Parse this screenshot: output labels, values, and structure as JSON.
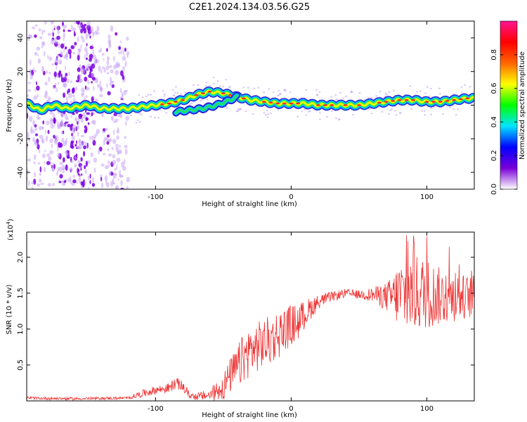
{
  "title": "C2E1.2024.134.03.56.G25",
  "chart_data": [
    {
      "type": "heatmap",
      "xlabel": "Height of straight line (km)",
      "ylabel": "Frequency (Hz)",
      "xlim": [
        -195,
        135
      ],
      "ylim": [
        -50,
        50
      ],
      "xticks": [
        -100,
        0,
        100
      ],
      "yticks": [
        -40,
        -20,
        0,
        20,
        40
      ],
      "xtick_labels": [
        "-100",
        "0",
        "100"
      ],
      "ytick_labels": [
        "-40",
        "-20",
        "0",
        "20",
        "40"
      ],
      "colorbar": {
        "label": "Normalized spectral amplitude",
        "range": [
          0,
          1
        ],
        "ticks": [
          0.0,
          0.2,
          0.4,
          0.6,
          0.8
        ],
        "tick_labels": [
          "0.0",
          "0.2",
          "0.4",
          "0.6",
          "0.8"
        ],
        "colors": [
          "#ffffff",
          "#7a00d9",
          "#0000ff",
          "#00e5ff",
          "#00ff00",
          "#ffff00",
          "#ff6600",
          "#ff0000",
          "#ff1493"
        ]
      },
      "ridge": {
        "x": [
          -195,
          -185,
          -175,
          -165,
          -150,
          -140,
          -130,
          -120,
          -110,
          -100,
          -90,
          -80,
          -70,
          -60,
          -50,
          -40,
          -30,
          -20,
          -10,
          0,
          10,
          20,
          30,
          40,
          50,
          60,
          70,
          80,
          90,
          100,
          110,
          120,
          130,
          135
        ],
        "y": [
          1,
          -3,
          0,
          -2,
          0,
          -2,
          -2,
          -2,
          -1,
          0,
          1,
          3,
          6,
          8,
          7,
          5,
          3,
          2,
          1,
          1,
          1,
          0,
          0,
          0,
          0,
          1,
          2,
          3,
          3,
          2,
          2,
          3,
          4,
          4
        ]
      },
      "secondary_ridge": {
        "x": [
          -85,
          -75,
          -65,
          -55,
          -45,
          -40
        ],
        "y": [
          -4,
          -3,
          -2,
          0,
          3,
          5
        ]
      },
      "noise_band": {
        "xmin": -195,
        "xmax": -120
      }
    },
    {
      "type": "line",
      "xlabel": "Height of straight line (km)",
      "ylabel": "SNR (10 * v/v)",
      "scale_label": "(x10",
      "scale_exponent": "4",
      "xlim": [
        -195,
        135
      ],
      "ylim": [
        0,
        2.35
      ],
      "xticks": [
        -100,
        0,
        100
      ],
      "yticks": [
        0.5,
        1.0,
        1.5,
        2.0
      ],
      "xtick_labels": [
        "-100",
        "0",
        "100"
      ],
      "ytick_labels": [
        "0.5",
        "1.0",
        "1.5",
        "2.0"
      ],
      "color": "#ee3333",
      "envelope": {
        "x": [
          -195,
          -160,
          -120,
          -110,
          -100,
          -90,
          -85,
          -80,
          -75,
          -70,
          -60,
          -50,
          -45,
          -40,
          -35,
          -30,
          -25,
          -20,
          -15,
          -10,
          -5,
          0,
          5,
          10,
          15,
          20,
          25,
          30,
          40,
          50,
          60,
          70,
          75,
          80,
          90,
          100,
          110,
          120,
          130,
          135
        ],
        "mean": [
          0.04,
          0.03,
          0.04,
          0.1,
          0.15,
          0.18,
          0.25,
          0.2,
          0.08,
          0.06,
          0.08,
          0.2,
          0.35,
          0.45,
          0.6,
          0.7,
          0.75,
          0.8,
          0.85,
          0.92,
          1.0,
          1.05,
          1.1,
          1.2,
          1.3,
          1.38,
          1.42,
          1.45,
          1.5,
          1.48,
          1.48,
          1.45,
          1.45,
          1.48,
          1.5,
          1.5,
          1.45,
          1.45,
          1.45,
          1.45
        ],
        "spread": [
          0.02,
          0.02,
          0.02,
          0.05,
          0.06,
          0.07,
          0.08,
          0.08,
          0.05,
          0.05,
          0.08,
          0.2,
          0.25,
          0.3,
          0.35,
          0.35,
          0.35,
          0.35,
          0.35,
          0.35,
          0.3,
          0.3,
          0.25,
          0.2,
          0.15,
          0.1,
          0.08,
          0.07,
          0.06,
          0.06,
          0.1,
          0.2,
          0.3,
          0.5,
          0.55,
          0.5,
          0.4,
          0.35,
          0.3,
          0.3
        ]
      }
    }
  ]
}
